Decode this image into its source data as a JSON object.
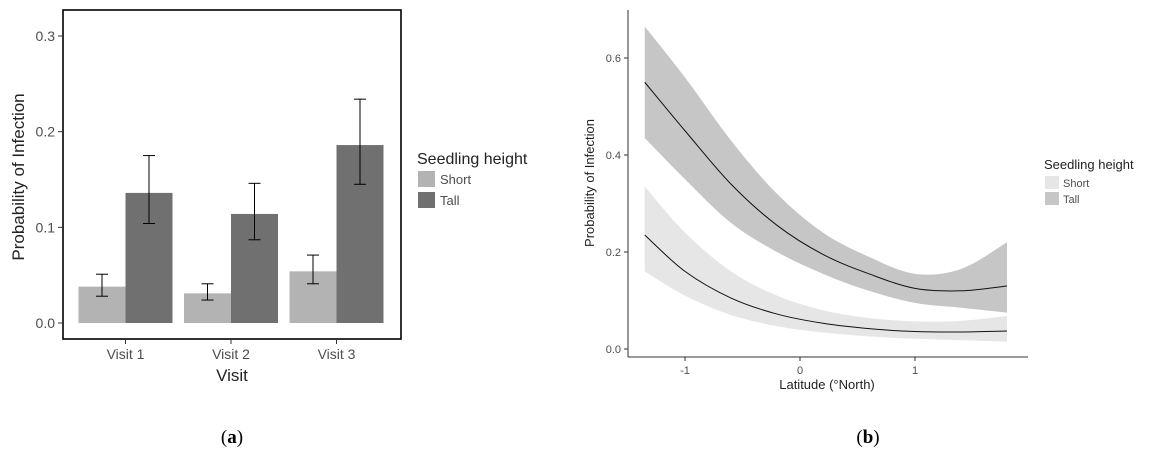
{
  "chart_data": [
    {
      "panel_label": "a",
      "type": "bar",
      "xlabel": "Visit",
      "ylabel": "Probability of Infection",
      "categories": [
        "Visit 1",
        "Visit 2",
        "Visit 3"
      ],
      "ylim": [
        0,
        0.3
      ],
      "yticks": [
        "0.0",
        "0.1",
        "0.2",
        "0.3"
      ],
      "legend": {
        "title": "Seedling height",
        "position": "right"
      },
      "series": [
        {
          "name": "Short",
          "color": "#b3b3b3",
          "values": [
            0.038,
            0.031,
            0.054
          ],
          "err_low": [
            0.028,
            0.024,
            0.041
          ],
          "err_high": [
            0.051,
            0.041,
            0.071
          ]
        },
        {
          "name": "Tall",
          "color": "#707070",
          "values": [
            0.136,
            0.114,
            0.186
          ],
          "err_low": [
            0.104,
            0.087,
            0.145
          ],
          "err_high": [
            0.175,
            0.146,
            0.234
          ]
        }
      ],
      "grid": false
    },
    {
      "panel_label": "b",
      "type": "line",
      "xlabel": "Latitude (°North)",
      "ylabel": "Probability of Infection",
      "xlim": [
        -1.35,
        1.8
      ],
      "ylim": [
        0,
        0.7
      ],
      "xticks": [
        -1,
        0,
        1
      ],
      "xtick_labels": [
        "-1",
        "0",
        "1"
      ],
      "yticks": [
        "0.0",
        "0.2",
        "0.4",
        "0.6"
      ],
      "legend": {
        "title": "Seedling height",
        "position": "right"
      },
      "x": [
        -1.35,
        -1.0,
        -0.6,
        -0.2,
        0.2,
        0.6,
        1.0,
        1.4,
        1.8
      ],
      "series": [
        {
          "name": "Tall",
          "color": "#c6c6c6",
          "values": [
            0.55,
            0.45,
            0.34,
            0.255,
            0.195,
            0.155,
            0.125,
            0.12,
            0.13
          ],
          "lower": [
            0.435,
            0.35,
            0.26,
            0.2,
            0.155,
            0.12,
            0.095,
            0.085,
            0.075
          ],
          "upper": [
            0.665,
            0.56,
            0.43,
            0.32,
            0.24,
            0.19,
            0.155,
            0.165,
            0.22
          ]
        },
        {
          "name": "Short",
          "color": "#e6e6e6",
          "values": [
            0.235,
            0.16,
            0.105,
            0.072,
            0.053,
            0.042,
            0.036,
            0.035,
            0.037
          ],
          "lower": [
            0.16,
            0.11,
            0.07,
            0.047,
            0.034,
            0.026,
            0.021,
            0.018,
            0.015
          ],
          "upper": [
            0.335,
            0.24,
            0.16,
            0.11,
            0.08,
            0.064,
            0.057,
            0.058,
            0.068
          ]
        }
      ],
      "grid": false
    }
  ],
  "captions": {
    "a": "a",
    "b": "b"
  }
}
